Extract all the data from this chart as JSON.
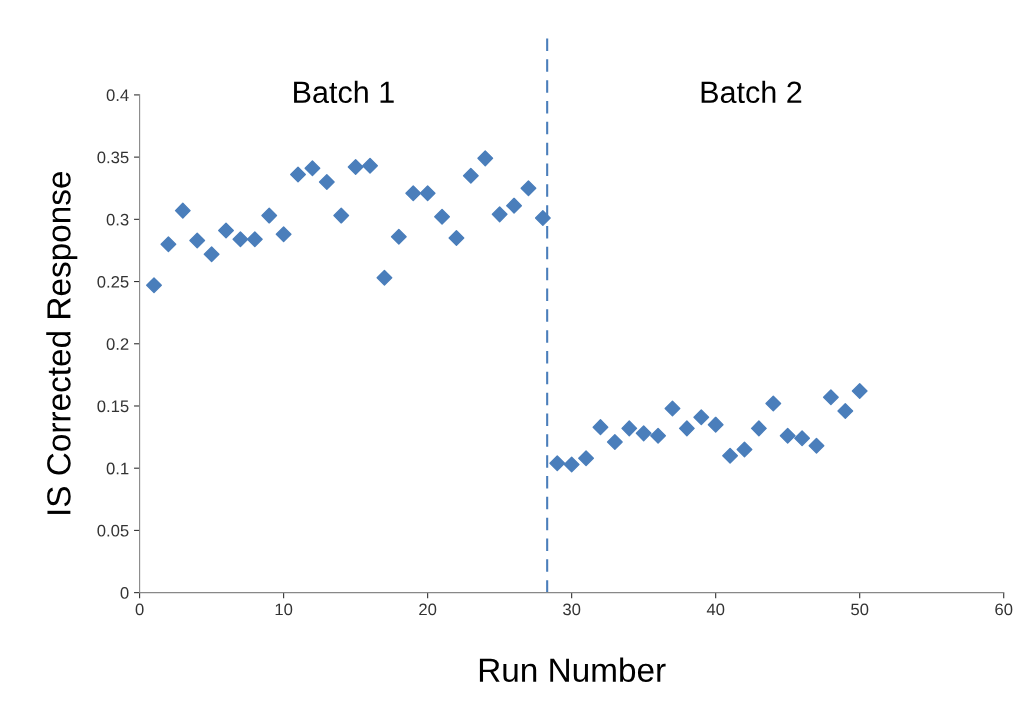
{
  "chart_data": {
    "type": "scatter",
    "xlabel": "Run Number",
    "ylabel": "IS Corrected Response",
    "x": [
      1,
      2,
      3,
      4,
      5,
      6,
      7,
      8,
      9,
      10,
      11,
      12,
      13,
      14,
      15,
      16,
      17,
      18,
      19,
      20,
      21,
      22,
      23,
      24,
      25,
      26,
      27,
      28,
      29,
      30,
      31,
      32,
      33,
      34,
      35,
      36,
      37,
      38,
      39,
      40,
      41,
      42,
      43,
      44,
      45,
      46,
      47,
      48,
      49,
      50
    ],
    "series": [
      {
        "color": "#4a7ebb",
        "values": [
          0.247,
          0.28,
          0.307,
          0.283,
          0.272,
          0.291,
          0.284,
          0.284,
          0.303,
          0.288,
          0.336,
          0.341,
          0.33,
          0.303,
          0.342,
          0.343,
          0.253,
          0.286,
          0.321,
          0.321,
          0.302,
          0.285,
          0.335,
          0.349,
          0.304,
          0.311,
          0.325,
          0.301,
          0.104,
          0.103,
          0.108,
          0.133,
          0.121,
          0.132,
          0.128,
          0.126,
          0.148,
          0.132,
          0.141,
          0.135,
          0.11,
          0.115,
          0.132,
          0.152,
          0.126,
          0.124,
          0.118,
          0.157,
          0.146,
          0.162
        ]
      }
    ],
    "xlim": [
      0,
      60
    ],
    "xticks": [
      0,
      10,
      20,
      30,
      40,
      50,
      60
    ],
    "ylim": [
      0,
      0.4
    ],
    "yticks": [
      0,
      0.05,
      0.1,
      0.15,
      0.2,
      0.25,
      0.3,
      0.35,
      0.4
    ],
    "ref_lines": [
      {
        "axis": "x",
        "value": 28.3,
        "color": "#4a7ebb",
        "line_style": "dashed"
      }
    ],
    "annotations": [
      "Batch 1",
      "Batch 2"
    ],
    "marker": "diamond",
    "grid": false,
    "legend": false
  }
}
